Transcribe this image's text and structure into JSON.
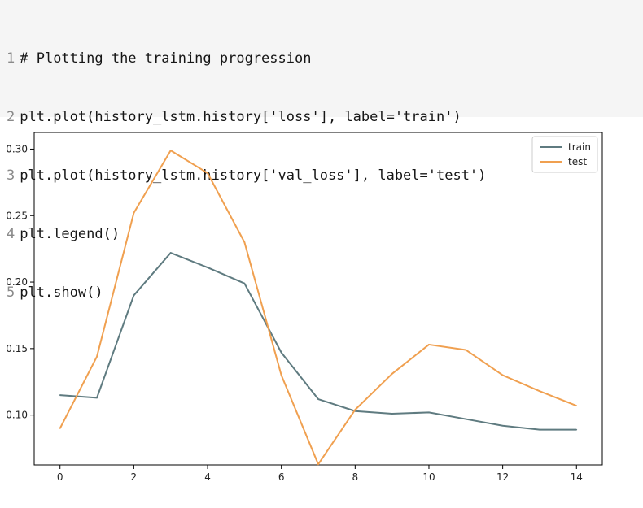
{
  "code_cell": {
    "lines": [
      {
        "number": "1",
        "text": "# Plotting the training progression"
      },
      {
        "number": "2",
        "text": "plt.plot(history_lstm.history['loss'], label='train')"
      },
      {
        "number": "3",
        "text": "plt.plot(history_lstm.history['val_loss'], label='test')"
      },
      {
        "number": "4",
        "text": "plt.legend()"
      },
      {
        "number": "5",
        "text": "plt.show()"
      }
    ]
  },
  "chart_data": {
    "type": "line",
    "title": "",
    "xlabel": "",
    "ylabel": "",
    "xlim": [
      -0.7,
      14.7
    ],
    "ylim": [
      0.0625,
      0.3125
    ],
    "x_ticks": [
      "0",
      "2",
      "4",
      "6",
      "8",
      "10",
      "12",
      "14"
    ],
    "y_ticks": [
      "0.10",
      "0.15",
      "0.20",
      "0.25",
      "0.30"
    ],
    "grid": false,
    "legend_position": "top-right",
    "x": [
      0,
      1,
      2,
      3,
      4,
      5,
      6,
      7,
      8,
      9,
      10,
      11,
      12,
      13,
      14
    ],
    "series": [
      {
        "name": "train",
        "color": "#5f7b80",
        "values": [
          0.115,
          0.113,
          0.19,
          0.222,
          0.211,
          0.199,
          0.147,
          0.112,
          0.103,
          0.101,
          0.102,
          0.097,
          0.092,
          0.089,
          0.089
        ]
      },
      {
        "name": "test",
        "color": "#f0a050",
        "values": [
          0.09,
          0.144,
          0.252,
          0.299,
          0.282,
          0.23,
          0.13,
          0.063,
          0.104,
          0.131,
          0.153,
          0.149,
          0.13,
          0.118,
          0.107
        ]
      }
    ]
  }
}
